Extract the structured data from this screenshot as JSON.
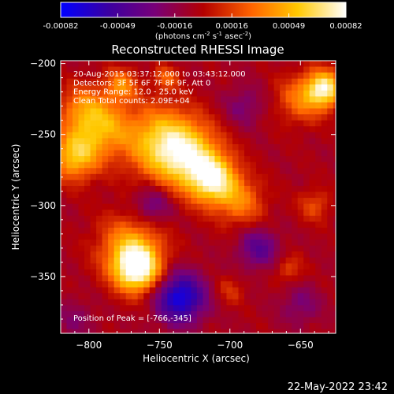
{
  "chart_data": {
    "type": "heatmap",
    "title": "Reconstructed RHESSI Image",
    "xlabel": "Heliocentric X (arcsec)",
    "ylabel": "Heliocentric Y (arcsec)",
    "xlim": [
      -820,
      -625
    ],
    "ylim": [
      -390,
      -198
    ],
    "x_ticks": [
      -800,
      -750,
      -700,
      -650
    ],
    "y_ticks": [
      -200,
      -250,
      -300,
      -350
    ],
    "colorbar": {
      "min": -0.00082,
      "max": 0.00082,
      "ticks": [
        "-0.00082",
        "-0.00049",
        "-0.00016",
        "0.00016",
        "0.00049",
        "0.00082"
      ],
      "unit_prefix": "(photons cm",
      "unit_sup1": "-2",
      "unit_mid1": " s",
      "unit_sup2": "-1",
      "unit_mid2": " asec",
      "unit_sup3": "-2",
      "unit_suffix": ")"
    },
    "colors": [
      "#0000ff",
      "#3c00a0",
      "#780078",
      "#b40000",
      "#ff6400",
      "#ffc800",
      "#ffffff"
    ],
    "info_lines": [
      "20-Aug-2015 03:37:12.000 to 03:43:12.000",
      "Detectors: 3F 5F 6F 7F 8F 9F, Att 0",
      "Energy Range: 12.0 - 25.0 keV",
      "Clean    Total counts: 2.09E+04"
    ],
    "peak_label": "Position of Peak = [-766,-345]",
    "sources": [
      {
        "x": -766,
        "y": -345,
        "peak": 0.00082,
        "sigma": 11
      },
      {
        "x": -770,
        "y": -330,
        "peak": 0.0005,
        "sigma": 16
      },
      {
        "x": -712,
        "y": -282,
        "peak": 0.00075,
        "sigma": 12
      },
      {
        "x": -730,
        "y": -265,
        "peak": 0.0006,
        "sigma": 16
      },
      {
        "x": -750,
        "y": -255,
        "peak": 0.00055,
        "sigma": 18
      },
      {
        "x": -790,
        "y": -245,
        "peak": 0.00045,
        "sigma": 14
      },
      {
        "x": -810,
        "y": -265,
        "peak": 0.0006,
        "sigma": 12
      },
      {
        "x": -805,
        "y": -232,
        "peak": 0.00035,
        "sigma": 12
      },
      {
        "x": -692,
        "y": -298,
        "peak": 0.00035,
        "sigma": 12
      },
      {
        "x": -633,
        "y": -218,
        "peak": 0.00078,
        "sigma": 9
      },
      {
        "x": -650,
        "y": -225,
        "peak": 0.00035,
        "sigma": 12
      },
      {
        "x": -777,
        "y": -215,
        "peak": 0.0004,
        "sigma": 8
      },
      {
        "x": -745,
        "y": -210,
        "peak": 0.0003,
        "sigma": 6
      },
      {
        "x": -640,
        "y": -300,
        "peak": 0.00025,
        "sigma": 8
      },
      {
        "x": -658,
        "y": -345,
        "peak": 0.00022,
        "sigma": 7
      },
      {
        "x": -700,
        "y": -360,
        "peak": 0.00018,
        "sigma": 7
      },
      {
        "x": -735,
        "y": -365,
        "peak": -0.0007,
        "sigma": 12
      },
      {
        "x": -680,
        "y": -330,
        "peak": -0.00035,
        "sigma": 10
      },
      {
        "x": -755,
        "y": -300,
        "peak": -0.0003,
        "sigma": 10
      },
      {
        "x": -690,
        "y": -230,
        "peak": -0.0002,
        "sigma": 10
      },
      {
        "x": -650,
        "y": -370,
        "peak": -0.0002,
        "sigma": 10
      },
      {
        "x": -810,
        "y": -380,
        "peak": -0.00015,
        "sigma": 10
      }
    ]
  },
  "timestamp": "22-May-2022 23:42"
}
